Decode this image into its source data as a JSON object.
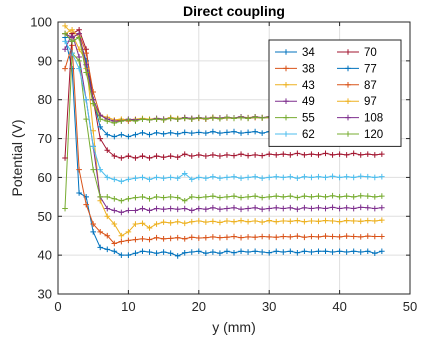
{
  "chart_data": {
    "type": "line",
    "title": "Direct coupling",
    "xlabel": "y (mm)",
    "ylabel": "Potential (V)",
    "xlim": [
      0,
      50
    ],
    "ylim": [
      30,
      100
    ],
    "xticks": [
      "0",
      "10",
      "20",
      "30",
      "40",
      "50"
    ],
    "yticks": [
      "30",
      "40",
      "50",
      "60",
      "70",
      "80",
      "90",
      "100"
    ],
    "grid": true,
    "marker": "+",
    "legend_position": "top-right",
    "legend_columns": 2,
    "x": [
      1,
      2,
      3,
      4,
      5,
      6,
      7,
      8,
      9,
      10,
      11,
      12,
      13,
      14,
      15,
      16,
      17,
      18,
      19,
      20,
      21,
      22,
      23,
      24,
      25,
      26,
      27,
      28,
      29,
      30,
      31,
      32,
      33,
      34,
      35,
      36,
      37,
      38,
      39,
      40,
      41,
      42,
      43,
      44,
      45,
      46
    ],
    "series": [
      {
        "name": "34",
        "color": "#0072bd",
        "values": [
          96,
          88,
          56,
          55,
          46,
          42,
          41.5,
          41,
          40,
          40,
          40.5,
          41,
          40.8,
          40.5,
          40.8,
          40.5,
          39.8,
          40.6,
          40.8,
          41,
          40.5,
          40.8,
          40.5,
          41,
          40.6,
          41,
          40.8,
          41,
          40.8,
          40.6,
          41,
          40.8,
          41,
          40.6,
          41,
          40.8,
          41,
          41,
          40.8,
          41,
          40.8,
          41,
          40.8,
          41,
          40.5,
          41
        ]
      },
      {
        "name": "38",
        "color": "#d95319",
        "values": [
          88,
          94,
          62,
          53,
          48,
          46,
          45,
          43,
          43.5,
          43.8,
          44,
          44.2,
          44,
          44.5,
          44.2,
          44.3,
          44.5,
          44.2,
          44.6,
          44.4,
          44.5,
          44.7,
          44.5,
          44.6,
          44.8,
          44.5,
          44.7,
          44.6,
          44.8,
          44.7,
          44.6,
          44.8,
          44.7,
          44.9,
          44.6,
          44.8,
          44.7,
          44.9,
          44.8,
          44.7,
          44.9,
          44.8,
          44.7,
          44.9,
          44.8,
          44.8
        ]
      },
      {
        "name": "43",
        "color": "#edb120",
        "values": [
          99,
          97,
          93,
          90,
          72,
          54,
          50,
          48,
          45,
          46,
          48,
          48.2,
          47,
          48,
          48.5,
          48.3,
          48.6,
          48.2,
          48.6,
          48.8,
          48.5,
          48.7,
          48.4,
          48.8,
          48.6,
          48.9,
          48.6,
          48.8,
          48.5,
          48.9,
          48.6,
          48.8,
          48.7,
          48.9,
          48.6,
          48.8,
          48.7,
          48.9,
          48.8,
          48.6,
          48.9,
          48.8,
          48.7,
          48.9,
          48.8,
          49
        ]
      },
      {
        "name": "49",
        "color": "#7e2f8e",
        "values": [
          93,
          97,
          91,
          80,
          68,
          55,
          52,
          51.5,
          51,
          51.5,
          51.5,
          52,
          51.5,
          52,
          51.8,
          52,
          51.8,
          52,
          51.5,
          52,
          51.8,
          52.2,
          51.8,
          52,
          52.2,
          51.8,
          52,
          52.2,
          51.8,
          52,
          52.2,
          52,
          52.2,
          51.8,
          52.2,
          52,
          52.2,
          52,
          52.3,
          52,
          52.2,
          52,
          52.3,
          52.2,
          52,
          52.2
        ]
      },
      {
        "name": "55",
        "color": "#77ac30",
        "values": [
          52,
          92,
          90,
          75,
          62,
          55,
          55,
          54.5,
          54,
          54.5,
          54.8,
          55,
          54.5,
          55,
          54.8,
          55,
          54.8,
          54,
          55,
          54.8,
          55,
          55.2,
          54.8,
          55,
          55.2,
          54.8,
          55,
          55.2,
          54.8,
          55,
          55.2,
          55,
          55.2,
          54.8,
          55.2,
          55,
          55.2,
          55,
          55.3,
          55,
          55.2,
          55,
          55.3,
          55.2,
          55,
          55.2
        ]
      },
      {
        "name": "62",
        "color": "#4dbeee",
        "values": [
          95,
          92,
          88,
          80,
          68,
          62,
          60,
          59.5,
          59,
          59.5,
          59.8,
          60,
          59.5,
          60,
          59.8,
          60,
          59.8,
          61,
          59.5,
          60,
          59.8,
          60.2,
          59.8,
          60,
          60.2,
          59.8,
          60,
          60.2,
          59.8,
          60,
          60.2,
          60,
          60.2,
          59.8,
          60.2,
          60,
          60.2,
          60,
          60.3,
          60,
          60.2,
          60,
          60.3,
          60.2,
          60,
          60.2
        ]
      },
      {
        "name": "70",
        "color": "#a2142f",
        "values": [
          65,
          97,
          98,
          93,
          80,
          70,
          67,
          65.5,
          65,
          65.5,
          65,
          65.5,
          65,
          65.5,
          65.2,
          65.5,
          65.2,
          66,
          65.5,
          65.8,
          65.5,
          65.8,
          65.5,
          65.8,
          65.6,
          66,
          65.6,
          65.8,
          65.6,
          66,
          65.8,
          66,
          65.8,
          66.2,
          65.8,
          66,
          65.8,
          66.2,
          65.8,
          66,
          65.8,
          66.2,
          65.8,
          66,
          65.8,
          66
        ]
      },
      {
        "name": "77",
        "color": "#0072bd",
        "values": [
          97,
          95,
          96,
          90,
          80,
          73,
          71,
          70.5,
          71,
          70.5,
          71,
          71.5,
          71,
          71.5,
          71.2,
          71.5,
          71.2,
          71.6,
          71.4,
          71.6,
          71.4,
          71.8,
          71.4,
          71.6,
          71.8,
          71.4,
          71.6,
          71.8,
          71.4,
          71.8,
          71.6,
          71.8,
          71.6,
          71.8,
          71.6,
          71.8,
          71.8,
          72,
          71.6,
          71.8,
          72,
          71.8,
          71.6,
          72,
          71.8,
          71.8
        ]
      },
      {
        "name": "87",
        "color": "#d95319",
        "values": [
          97,
          96,
          97,
          92,
          82,
          76,
          75,
          74.5,
          74.8,
          74.5,
          74.8,
          75,
          74.8,
          75,
          74.8,
          75.2,
          75,
          75.2,
          75,
          75.2,
          75,
          75.3,
          75.1,
          75.3,
          75.2,
          75.4,
          75.2,
          75.4,
          75.3,
          75.4,
          75.3,
          75.5,
          75.3,
          75.5,
          75.4,
          75.5,
          75.4,
          75.6,
          75.4,
          75.6,
          75.5,
          75.6,
          75.5,
          75.6,
          75.5,
          75.6
        ]
      },
      {
        "name": "97",
        "color": "#edb120",
        "values": [
          97,
          98,
          96,
          88,
          79,
          76,
          75.5,
          74.8,
          75,
          74.8,
          75,
          75.2,
          75,
          75.2,
          75,
          75.4,
          75.2,
          75.4,
          75.2,
          75.4,
          75.2,
          75.5,
          75.3,
          75.5,
          75.3,
          75.6,
          75.4,
          75.6,
          75.4,
          75.6,
          75.5,
          75.6,
          75.5,
          75.7,
          75.5,
          75.7,
          75.6,
          75.7,
          75.6,
          75.8,
          75.6,
          75.8,
          75.6,
          75.8,
          75.7,
          75.8
        ]
      },
      {
        "name": "108",
        "color": "#7e2f8e",
        "values": [
          97,
          96,
          97,
          89,
          80,
          76,
          75,
          74.5,
          74.5,
          75,
          74.8,
          75,
          74.8,
          75.2,
          75,
          75.2,
          75,
          75.4,
          75.2,
          75.4,
          75.2,
          75.4,
          75.3,
          75.5,
          75.3,
          75.6,
          75.3,
          75.6,
          75.4,
          75.6,
          75.4,
          75.7,
          75.5,
          75.7,
          75.5,
          75.7,
          75.6,
          75.7,
          75.6,
          75.8,
          75.6,
          75.8,
          75.7,
          75.8,
          75.7,
          75.8
        ]
      },
      {
        "name": "120",
        "color": "#77ac30",
        "values": [
          97,
          95,
          96,
          87,
          79,
          75,
          74.5,
          74,
          74.5,
          74.8,
          74.5,
          75,
          74.8,
          75,
          74.8,
          75.2,
          75,
          75.2,
          75,
          75.3,
          75.1,
          75.3,
          75.1,
          75.4,
          75.2,
          75.4,
          75.2,
          75.5,
          75.3,
          75.5,
          75.3,
          75.6,
          75.4,
          75.6,
          75.4,
          75.6,
          75.5,
          75.7,
          75.5,
          75.7,
          75.6,
          75.7,
          75.6,
          75.7,
          75.6,
          75.7
        ]
      }
    ]
  }
}
